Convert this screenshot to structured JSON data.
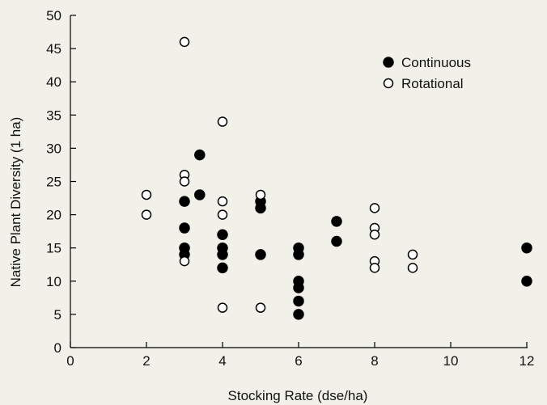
{
  "chart_data": {
    "type": "scatter",
    "xlabel": "Stocking Rate (dse/ha)",
    "ylabel": "Native Plant Diversity (1 ha)",
    "xlim": [
      0,
      12
    ],
    "ylim": [
      0,
      50
    ],
    "xticks": [
      0,
      2,
      4,
      6,
      8,
      10,
      12
    ],
    "yticks": [
      0,
      5,
      10,
      15,
      20,
      25,
      30,
      35,
      40,
      45,
      50
    ],
    "grid": false,
    "legend_position": "top-right",
    "series": [
      {
        "name": "Continuous",
        "marker": "filled-circle",
        "color": "#000000",
        "points": [
          [
            3,
            22
          ],
          [
            3,
            18
          ],
          [
            3,
            15
          ],
          [
            3,
            14
          ],
          [
            3.4,
            29
          ],
          [
            3.4,
            23
          ],
          [
            4,
            17
          ],
          [
            4,
            15
          ],
          [
            4,
            14
          ],
          [
            4,
            12
          ],
          [
            5,
            22
          ],
          [
            5,
            21
          ],
          [
            5,
            14
          ],
          [
            6,
            15
          ],
          [
            6,
            14
          ],
          [
            6,
            10
          ],
          [
            6,
            9
          ],
          [
            6,
            7
          ],
          [
            6,
            5
          ],
          [
            7,
            19
          ],
          [
            7,
            16
          ],
          [
            12,
            15
          ],
          [
            12,
            10
          ]
        ]
      },
      {
        "name": "Rotational",
        "marker": "open-circle",
        "color": "#000000",
        "points": [
          [
            2,
            23
          ],
          [
            2,
            20
          ],
          [
            3,
            46
          ],
          [
            3,
            26
          ],
          [
            3,
            25
          ],
          [
            3,
            13
          ],
          [
            4,
            34
          ],
          [
            4,
            22
          ],
          [
            4,
            20
          ],
          [
            4,
            6
          ],
          [
            5,
            23
          ],
          [
            5,
            6
          ],
          [
            8,
            21
          ],
          [
            8,
            18
          ],
          [
            8,
            17
          ],
          [
            8,
            13
          ],
          [
            8,
            12
          ],
          [
            9,
            14
          ],
          [
            9,
            12
          ]
        ]
      }
    ]
  }
}
